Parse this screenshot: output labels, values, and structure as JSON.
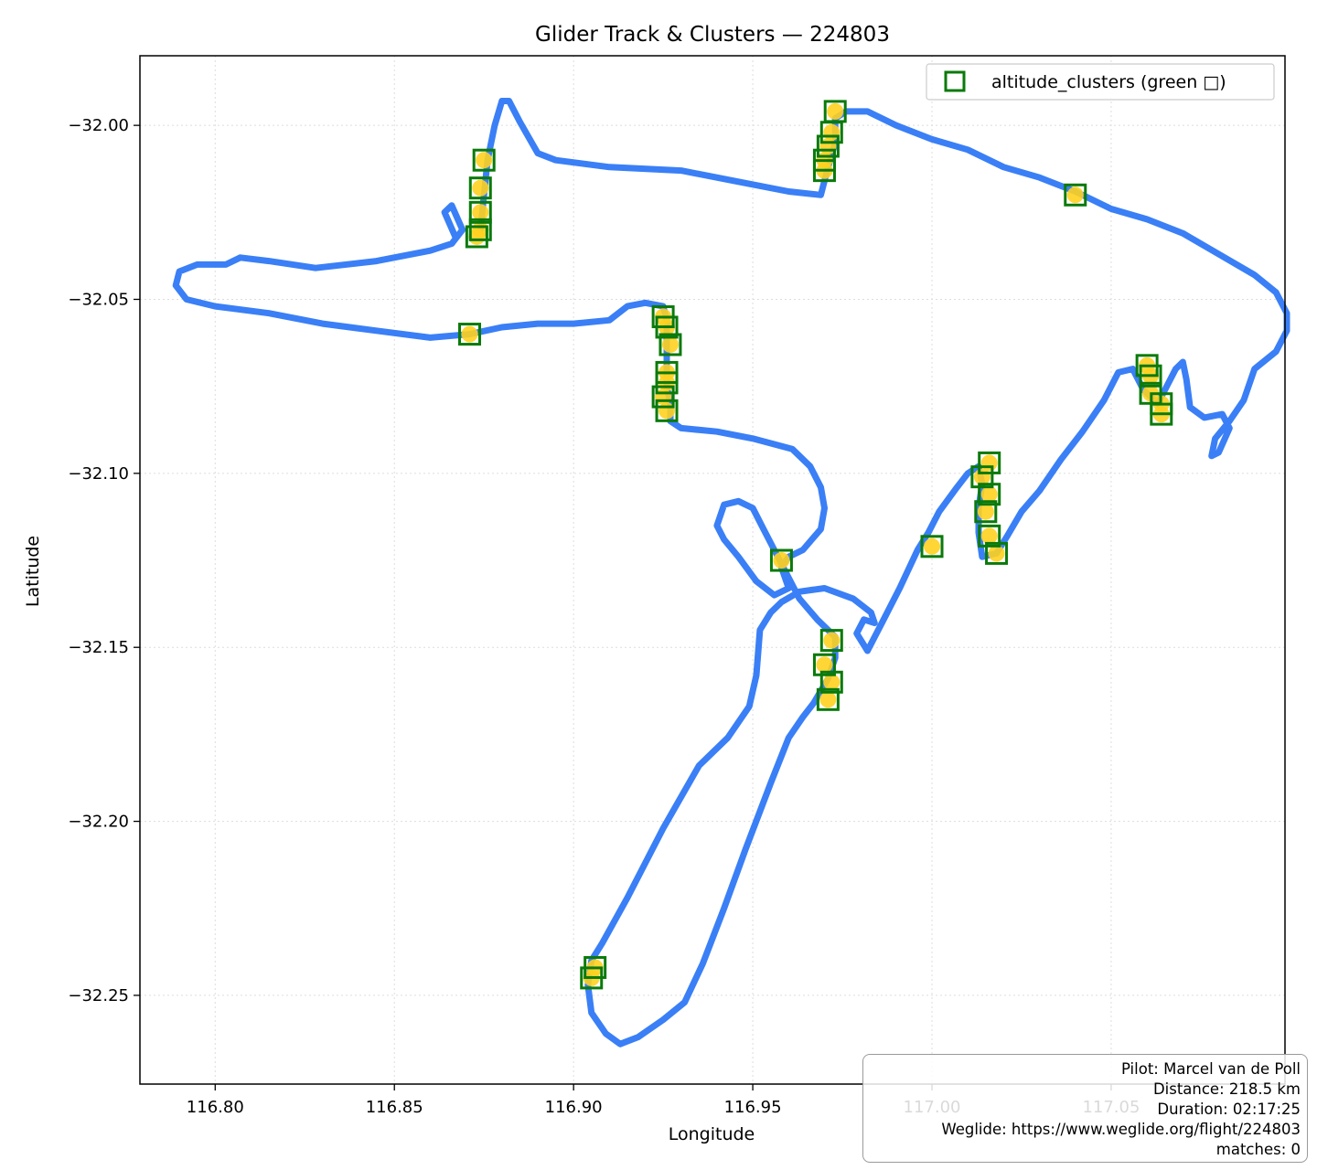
{
  "chart_data": {
    "type": "scatter",
    "title": "Glider Track & Clusters — 224803",
    "xlabel": "Longitude",
    "ylabel": "Latitude",
    "xlim": [
      116.779,
      117.0985
    ],
    "ylim": [
      -32.2755,
      -31.98
    ],
    "x_ticks": [
      116.8,
      116.85,
      116.9,
      116.95,
      117.0,
      117.05
    ],
    "x_tick_labels": [
      "116.80",
      "116.85",
      "116.90",
      "116.95",
      "117.00",
      "117.05"
    ],
    "y_ticks": [
      -32.0,
      -32.05,
      -32.1,
      -32.15,
      -32.2,
      -32.25
    ],
    "y_tick_labels": [
      "−32.00",
      "−32.05",
      "−32.10",
      "−32.15",
      "−32.20",
      "−32.25"
    ],
    "grid": true,
    "legend_position": "top-right",
    "colors": {
      "track": "#3a7ff6",
      "climb": "#ffd21f",
      "cluster_marker": "#0a7a0a",
      "grid": "#dddddd"
    },
    "track": [
      [
        116.867,
        -32.032
      ],
      [
        116.864,
        -32.025
      ],
      [
        116.866,
        -32.023
      ],
      [
        116.869,
        -32.03
      ],
      [
        116.866,
        -32.034
      ],
      [
        116.86,
        -32.036
      ],
      [
        116.845,
        -32.039
      ],
      [
        116.828,
        -32.041
      ],
      [
        116.815,
        -32.039
      ],
      [
        116.807,
        -32.038
      ],
      [
        116.803,
        -32.04
      ],
      [
        116.795,
        -32.04
      ],
      [
        116.79,
        -32.042
      ],
      [
        116.789,
        -32.046
      ],
      [
        116.792,
        -32.05
      ],
      [
        116.8,
        -32.052
      ],
      [
        116.815,
        -32.054
      ],
      [
        116.83,
        -32.057
      ],
      [
        116.845,
        -32.059
      ],
      [
        116.86,
        -32.061
      ],
      [
        116.871,
        -32.06
      ],
      [
        116.88,
        -32.058
      ],
      [
        116.89,
        -32.057
      ],
      [
        116.9,
        -32.057
      ],
      [
        116.91,
        -32.056
      ],
      [
        116.915,
        -32.052
      ],
      [
        116.92,
        -32.051
      ],
      [
        116.925,
        -32.052
      ],
      [
        116.926,
        -32.056
      ],
      [
        116.926,
        -32.06
      ],
      [
        116.926,
        -32.065
      ],
      [
        116.926,
        -32.07
      ],
      [
        116.926,
        -32.075
      ],
      [
        116.927,
        -32.08
      ],
      [
        116.927,
        -32.085
      ],
      [
        116.93,
        -32.087
      ],
      [
        116.94,
        -32.088
      ],
      [
        116.95,
        -32.09
      ],
      [
        116.961,
        -32.093
      ],
      [
        116.966,
        -32.098
      ],
      [
        116.969,
        -32.104
      ],
      [
        116.97,
        -32.11
      ],
      [
        116.969,
        -32.116
      ],
      [
        116.964,
        -32.122
      ],
      [
        116.96,
        -32.124
      ],
      [
        116.958,
        -32.127
      ],
      [
        116.96,
        -32.133
      ],
      [
        116.956,
        -32.135
      ],
      [
        116.951,
        -32.131
      ],
      [
        116.946,
        -32.124
      ],
      [
        116.942,
        -32.119
      ],
      [
        116.94,
        -32.115
      ],
      [
        116.942,
        -32.109
      ],
      [
        116.946,
        -32.108
      ],
      [
        116.95,
        -32.11
      ],
      [
        116.953,
        -32.116
      ],
      [
        116.957,
        -32.124
      ],
      [
        116.96,
        -32.13
      ],
      [
        116.963,
        -32.136
      ],
      [
        116.968,
        -32.142
      ],
      [
        116.973,
        -32.147
      ],
      [
        116.973,
        -32.153
      ],
      [
        116.971,
        -32.159
      ],
      [
        116.967,
        -32.166
      ],
      [
        116.964,
        -32.17
      ],
      [
        116.96,
        -32.176
      ],
      [
        116.955,
        -32.189
      ],
      [
        116.948,
        -32.208
      ],
      [
        116.942,
        -32.225
      ],
      [
        116.936,
        -32.241
      ],
      [
        116.931,
        -32.252
      ],
      [
        116.925,
        -32.257
      ],
      [
        116.918,
        -32.262
      ],
      [
        116.913,
        -32.264
      ],
      [
        116.909,
        -32.261
      ],
      [
        116.905,
        -32.255
      ],
      [
        116.904,
        -32.247
      ],
      [
        116.905,
        -32.24
      ],
      [
        116.908,
        -32.235
      ],
      [
        116.915,
        -32.222
      ],
      [
        116.925,
        -32.202
      ],
      [
        116.935,
        -32.184
      ],
      [
        116.943,
        -32.176
      ],
      [
        116.949,
        -32.167
      ],
      [
        116.951,
        -32.158
      ],
      [
        116.952,
        -32.145
      ],
      [
        116.955,
        -32.14
      ],
      [
        116.958,
        -32.137
      ],
      [
        116.963,
        -32.134
      ],
      [
        116.97,
        -32.133
      ],
      [
        116.978,
        -32.136
      ],
      [
        116.983,
        -32.14
      ],
      [
        116.984,
        -32.143
      ],
      [
        116.981,
        -32.142
      ],
      [
        116.979,
        -32.146
      ],
      [
        116.982,
        -32.151
      ],
      [
        116.986,
        -32.143
      ],
      [
        116.991,
        -32.133
      ],
      [
        116.996,
        -32.122
      ],
      [
        116.999,
        -32.117
      ],
      [
        117.002,
        -32.111
      ],
      [
        117.007,
        -32.104
      ],
      [
        117.01,
        -32.1
      ],
      [
        117.013,
        -32.098
      ],
      [
        117.014,
        -32.103
      ],
      [
        117.013,
        -32.11
      ],
      [
        117.013,
        -32.117
      ],
      [
        117.014,
        -32.124
      ],
      [
        117.018,
        -32.123
      ],
      [
        117.021,
        -32.118
      ],
      [
        117.025,
        -32.111
      ],
      [
        117.03,
        -32.105
      ],
      [
        117.036,
        -32.096
      ],
      [
        117.042,
        -32.088
      ],
      [
        117.048,
        -32.079
      ],
      [
        117.052,
        -32.071
      ],
      [
        117.056,
        -32.07
      ],
      [
        117.059,
        -32.076
      ],
      [
        117.063,
        -32.08
      ],
      [
        117.068,
        -32.07
      ],
      [
        117.07,
        -32.068
      ],
      [
        117.071,
        -32.073
      ],
      [
        117.072,
        -32.081
      ],
      [
        117.076,
        -32.084
      ],
      [
        117.081,
        -32.083
      ],
      [
        117.083,
        -32.087
      ],
      [
        117.08,
        -32.094
      ],
      [
        117.078,
        -32.095
      ],
      [
        117.079,
        -32.09
      ],
      [
        117.083,
        -32.085
      ],
      [
        117.087,
        -32.079
      ],
      [
        117.09,
        -32.07
      ],
      [
        117.096,
        -32.065
      ],
      [
        117.099,
        -32.059
      ],
      [
        117.099,
        -32.054
      ],
      [
        117.096,
        -32.048
      ],
      [
        117.09,
        -32.043
      ],
      [
        117.08,
        -32.037
      ],
      [
        117.07,
        -32.031
      ],
      [
        117.06,
        -32.027
      ],
      [
        117.05,
        -32.024
      ],
      [
        117.04,
        -32.019
      ],
      [
        117.03,
        -32.015
      ],
      [
        117.02,
        -32.012
      ],
      [
        117.01,
        -32.007
      ],
      [
        117.0,
        -32.004
      ],
      [
        116.99,
        -32.0
      ],
      [
        116.982,
        -31.996
      ],
      [
        116.976,
        -31.996
      ],
      [
        116.973,
        -31.998
      ],
      [
        116.973,
        -32.005
      ],
      [
        116.971,
        -32.012
      ],
      [
        116.969,
        -32.02
      ],
      [
        116.96,
        -32.019
      ],
      [
        116.945,
        -32.016
      ],
      [
        116.93,
        -32.013
      ],
      [
        116.91,
        -32.012
      ],
      [
        116.895,
        -32.01
      ],
      [
        116.89,
        -32.008
      ],
      [
        116.885,
        -31.999
      ],
      [
        116.882,
        -31.993
      ],
      [
        116.88,
        -31.993
      ],
      [
        116.878,
        -32.0
      ],
      [
        116.876,
        -32.01
      ],
      [
        116.875,
        -32.02
      ],
      [
        116.874,
        -32.03
      ]
    ],
    "altitude_clusters": {
      "name": "altitude_clusters (green □)",
      "points": [
        [
          116.875,
          -32.01
        ],
        [
          116.874,
          -32.018
        ],
        [
          116.874,
          -32.025
        ],
        [
          116.874,
          -32.03
        ],
        [
          116.873,
          -32.032
        ],
        [
          116.871,
          -32.06
        ],
        [
          116.925,
          -32.055
        ],
        [
          116.926,
          -32.058
        ],
        [
          116.927,
          -32.063
        ],
        [
          116.926,
          -32.071
        ],
        [
          116.926,
          -32.074
        ],
        [
          116.925,
          -32.078
        ],
        [
          116.926,
          -32.082
        ],
        [
          116.973,
          -31.996
        ],
        [
          116.972,
          -32.002
        ],
        [
          116.971,
          -32.006
        ],
        [
          116.97,
          -32.01
        ],
        [
          116.97,
          -32.013
        ],
        [
          117.04,
          -32.02
        ],
        [
          117.06,
          -32.069
        ],
        [
          117.061,
          -32.072
        ],
        [
          117.061,
          -32.077
        ],
        [
          117.064,
          -32.08
        ],
        [
          117.064,
          -32.083
        ],
        [
          117.016,
          -32.097
        ],
        [
          117.014,
          -32.101
        ],
        [
          117.016,
          -32.106
        ],
        [
          117.015,
          -32.111
        ],
        [
          117.016,
          -32.118
        ],
        [
          117.018,
          -32.123
        ],
        [
          117.0,
          -32.121
        ],
        [
          116.958,
          -32.125
        ],
        [
          116.972,
          -32.148
        ],
        [
          116.97,
          -32.155
        ],
        [
          116.972,
          -32.16
        ],
        [
          116.971,
          -32.165
        ],
        [
          116.906,
          -32.242
        ],
        [
          116.905,
          -32.245
        ]
      ]
    }
  },
  "info": {
    "pilot": "Pilot: Marcel van de Poll",
    "distance": "Distance: 218.5 km",
    "duration": "Duration: 02:17:25",
    "weglide": "Weglide: https://www.weglide.org/flight/224803",
    "matches": "matches: 0"
  }
}
